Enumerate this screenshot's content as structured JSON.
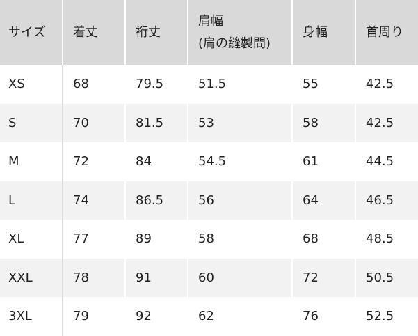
{
  "headers": [
    "サイズ",
    "着丈",
    "裄丈",
    "肩幅",
    "(肩の縫製間)",
    "身幅",
    "首周り"
  ],
  "rows": [
    [
      "XS",
      "68",
      "79.5",
      "51.5",
      "55",
      "42.5"
    ],
    [
      "S",
      "70",
      "81.5",
      "53",
      "58",
      "42.5"
    ],
    [
      "M",
      "72",
      "84",
      "54.5",
      "61",
      "44.5"
    ],
    [
      "L",
      "74",
      "86.5",
      "56",
      "64",
      "46.5"
    ],
    [
      "XL",
      "77",
      "89",
      "58",
      "68",
      "48.5"
    ],
    [
      "XXL",
      "78",
      "91",
      "60",
      "72",
      "50.5"
    ],
    [
      "3XL",
      "79",
      "92",
      "62",
      "76",
      "52.5"
    ]
  ]
}
